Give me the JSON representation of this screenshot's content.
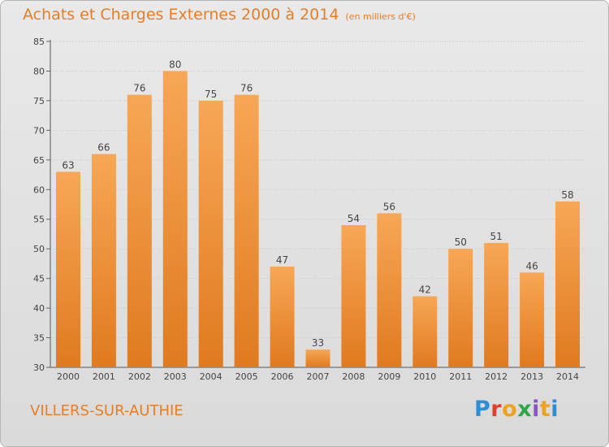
{
  "header": {
    "title": "Achats et Charges Externes 2000 à 2014",
    "unit": "(en milliers d'€)"
  },
  "footer": {
    "commune": "VILLERS-SUR-AUTHIE",
    "logo": [
      "P",
      "r",
      "o",
      "x",
      "i",
      "t",
      "i"
    ]
  },
  "colors": {
    "bar_light": "#f7a756",
    "bar_dark": "#e07a1f",
    "accent": "#ea7d23"
  },
  "chart_data": {
    "type": "bar",
    "title": "Achats et Charges Externes 2000 à 2014",
    "subtitle": "(en milliers d'€)",
    "xlabel": "",
    "ylabel": "",
    "categories": [
      "2000",
      "2001",
      "2002",
      "2003",
      "2004",
      "2005",
      "2006",
      "2007",
      "2008",
      "2009",
      "2010",
      "2011",
      "2012",
      "2013",
      "2014"
    ],
    "values": [
      63,
      66,
      76,
      80,
      75,
      76,
      47,
      33,
      54,
      56,
      42,
      50,
      51,
      46,
      58
    ],
    "ylim": [
      30,
      85
    ],
    "yticks": [
      30,
      35,
      40,
      45,
      50,
      55,
      60,
      65,
      70,
      75,
      80,
      85
    ],
    "grid": true
  }
}
